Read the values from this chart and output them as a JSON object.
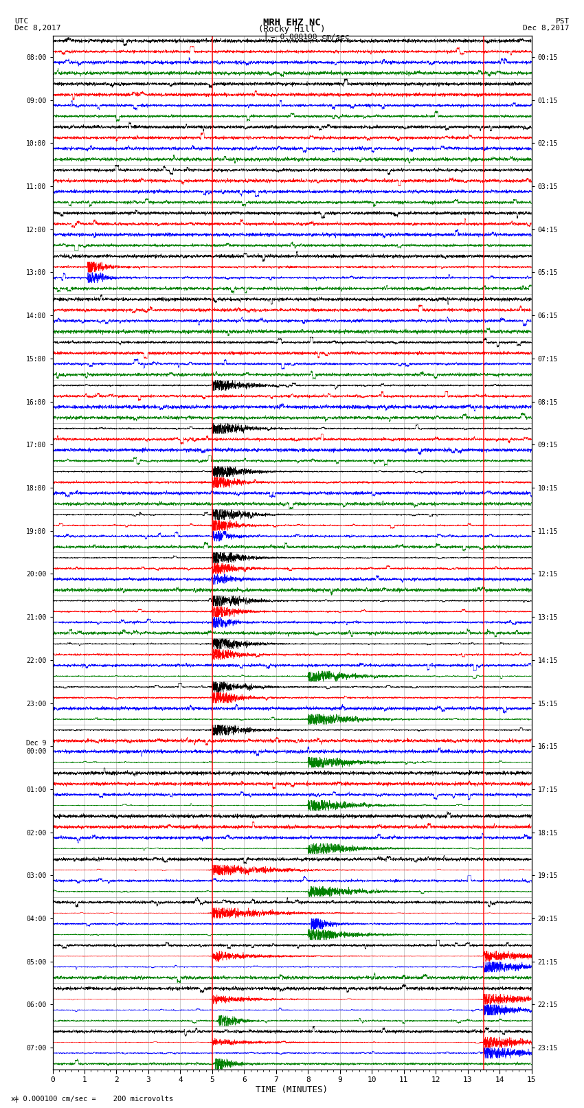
{
  "title_line1": "MRH EHZ NC",
  "title_line2": "(Rocky Hill )",
  "scale_label": "= 0.000100 cm/sec",
  "bottom_label": "= 0.000100 cm/sec =    200 microvolts",
  "xlabel": "TIME (MINUTES)",
  "left_header_line1": "UTC",
  "left_header_line2": "Dec 8,2017",
  "right_header_line1": "PST",
  "right_header_line2": "Dec 8,2017",
  "left_yticks": [
    "08:00",
    "09:00",
    "10:00",
    "11:00",
    "12:00",
    "13:00",
    "14:00",
    "15:00",
    "16:00",
    "17:00",
    "18:00",
    "19:00",
    "20:00",
    "21:00",
    "22:00",
    "23:00",
    "Dec 9\n00:00",
    "01:00",
    "02:00",
    "03:00",
    "04:00",
    "05:00",
    "06:00",
    "07:00"
  ],
  "right_yticks": [
    "00:15",
    "01:15",
    "02:15",
    "03:15",
    "04:15",
    "05:15",
    "06:15",
    "07:15",
    "08:15",
    "09:15",
    "10:15",
    "11:15",
    "12:15",
    "13:15",
    "14:15",
    "15:15",
    "16:15",
    "17:15",
    "18:15",
    "19:15",
    "20:15",
    "21:15",
    "22:15",
    "23:15"
  ],
  "n_rows": 24,
  "traces_per_row": 4,
  "colors": [
    "black",
    "red",
    "blue",
    "green"
  ],
  "bg_color": "white",
  "grid_color": "#888888",
  "xmin": 0,
  "xmax": 15,
  "xticks": [
    0,
    1,
    2,
    3,
    4,
    5,
    6,
    7,
    8,
    9,
    10,
    11,
    12,
    13,
    14,
    15
  ],
  "figsize": [
    8.5,
    16.13
  ],
  "dpi": 100,
  "noise_scale_early": 0.25,
  "noise_scale_late": 0.18,
  "red_vlines": [
    5.0,
    13.5
  ],
  "black_event_col": 5.0,
  "black_event_rows": [
    8,
    9,
    10,
    11,
    12,
    13,
    14,
    15,
    16
  ],
  "green_event_col": 8.0,
  "green_event_rows": [
    14,
    15,
    16,
    17,
    18,
    19,
    20
  ],
  "red_event_rows_col5": [
    10,
    11,
    12,
    13,
    14,
    15
  ],
  "blue_event_rows_col5": [
    11,
    12,
    13
  ],
  "extra_events": [
    {
      "row": 20,
      "col": 5.1,
      "color_idx": 1,
      "amp": 3.0
    },
    {
      "row": 21,
      "col": 5.1,
      "color_idx": 1,
      "amp": 4.0
    },
    {
      "row": 22,
      "col": 5.1,
      "color_idx": 1,
      "amp": 2.0
    },
    {
      "row": 22,
      "col": 5.2,
      "color_idx": 3,
      "amp": 3.0
    },
    {
      "row": 23,
      "col": 5.1,
      "color_idx": 3,
      "amp": 2.0
    },
    {
      "row": 20,
      "col": 8.1,
      "color_idx": 2,
      "amp": 2.5
    },
    {
      "row": 5,
      "col": 1.1,
      "color_idx": 2,
      "amp": 3.0
    },
    {
      "row": 5,
      "col": 1.1,
      "color_idx": 1,
      "amp": 2.5
    },
    {
      "row": 21,
      "col": 13.5,
      "color_idx": 1,
      "amp": 5.0
    },
    {
      "row": 22,
      "col": 13.5,
      "color_idx": 1,
      "amp": 6.0
    },
    {
      "row": 22,
      "col": 13.6,
      "color_idx": 2,
      "amp": 4.0
    },
    {
      "row": 23,
      "col": 13.5,
      "color_idx": 1,
      "amp": 5.0
    }
  ]
}
